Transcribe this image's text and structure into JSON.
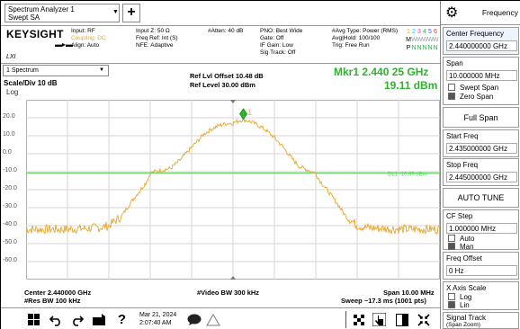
{
  "window": {
    "tab_line1": "Spectrum Analyzer 1",
    "tab_line2": "Swept SA",
    "add_tab": "+"
  },
  "header": {
    "brand": "KEYSIGHT",
    "lxi": "LXI",
    "input_col": [
      "Input: RF",
      "Coupling: DC",
      "Align: Auto"
    ],
    "impedance_col": [
      "Input Z: 50 Ω",
      "",
      "Freq Ref: Int (S)",
      "NFE: Adaptive"
    ],
    "atten": "#Atten: 40 dB",
    "pno_col": [
      "PNO: Best Wide",
      "Gate: Off",
      "IF Gain: Low",
      "Sig Track: Off"
    ],
    "avg_col": [
      "#Avg Type: Power (RMS)",
      "Avg|Hold: 100/100",
      "Trig: Free Run"
    ],
    "trace_numbers": [
      "1",
      "2",
      "3",
      "4",
      "5",
      "6"
    ],
    "trace_types": [
      "M",
      "W",
      "W",
      "W",
      "W",
      "W"
    ],
    "trace_detectors": [
      "P",
      "N",
      "N",
      "N",
      "N",
      "N"
    ],
    "colors": {
      "trace": "#e8a52a",
      "marker": "#2ab52a",
      "display_line": "#48d148"
    }
  },
  "measurement": {
    "view": "1 Spectrum",
    "scale": "Scale/Div 10 dB",
    "scale_type": "Log",
    "ref_offset": "Ref Lvl Offset 10.48 dB",
    "ref_level": "Ref Level 30.00 dBm",
    "marker_freq": "Mkr1  2.440 25 GHz",
    "marker_amp": "19.11 dBm",
    "marker_label": "1",
    "display_line_label": "DL1 -10.69 dBm",
    "center": "Center 2.440000 GHz",
    "res_bw": "#Res BW 100 kHz",
    "video_bw": "#Video BW 300 kHz",
    "span": "Span 10.00 MHz",
    "sweep": "Sweep ~17.3 ms (1001 pts)"
  },
  "chart_data": {
    "type": "line",
    "xlabel": "",
    "ylabel": "",
    "x_unit": "MHz offset from center",
    "xlim": [
      -5,
      5
    ],
    "ylim": [
      -70,
      30
    ],
    "y_ticks": [
      20,
      10,
      0,
      -10,
      -20,
      -30,
      -40,
      -50,
      -60
    ],
    "grid": true,
    "display_line": -10.69,
    "marker": {
      "x": 0.25,
      "y": 19.11
    },
    "series": [
      {
        "x": [
          -5,
          -4.5,
          -4,
          -3.5,
          -3.2,
          -3,
          -2.7,
          -2.5,
          -2.3,
          -2.1,
          -2,
          -1.9,
          -1.7,
          -1.5,
          -1.3,
          -1.1,
          -0.9,
          -0.7,
          -0.5,
          -0.3,
          -0.1,
          0,
          0.1,
          0.25,
          0.4,
          0.6,
          0.8,
          1,
          1.2,
          1.4,
          1.6,
          1.8,
          1.9,
          2,
          2.1,
          2.3,
          2.5,
          2.7,
          3,
          3.2,
          3.5,
          4,
          4.5,
          5
        ],
        "y": [
          -42,
          -42,
          -42,
          -41.5,
          -41,
          -40,
          -35,
          -28,
          -22,
          -16,
          -11,
          -10,
          -9,
          -8,
          -4,
          1,
          6,
          11,
          14,
          16,
          17,
          17,
          18,
          19.1,
          18,
          16,
          13,
          9,
          4,
          -2,
          -7,
          -9,
          -10,
          -11,
          -15,
          -21,
          -27,
          -34,
          -40,
          -41,
          -41.5,
          -42,
          -42,
          -42
        ]
      }
    ]
  },
  "taskbar": {
    "date": "Mar 21, 2024",
    "time": "2:07:40 AM"
  },
  "panel": {
    "title": "Frequency",
    "center_freq_label": "Center Frequency",
    "center_freq_value": "2.440000000 GHz",
    "span_label": "Span",
    "span_value": "10.000000 MHz",
    "swept_span": "Swept Span",
    "zero_span": "Zero Span",
    "full_span": "Full Span",
    "start_label": "Start Freq",
    "start_value": "2.435000000 GHz",
    "stop_label": "Stop Freq",
    "stop_value": "2.445000000 GHz",
    "auto_tune": "AUTO TUNE",
    "cf_step_label": "CF Step",
    "cf_step_value": "1.000000 MHz",
    "auto": "Auto",
    "man": "Man",
    "offset_label": "Freq Offset",
    "offset_value": "0 Hz",
    "x_axis_label": "X Axis Scale",
    "log": "Log",
    "lin": "Lin",
    "signal_track_label": "Signal Track",
    "signal_track_sub": "(Span Zoom)"
  }
}
